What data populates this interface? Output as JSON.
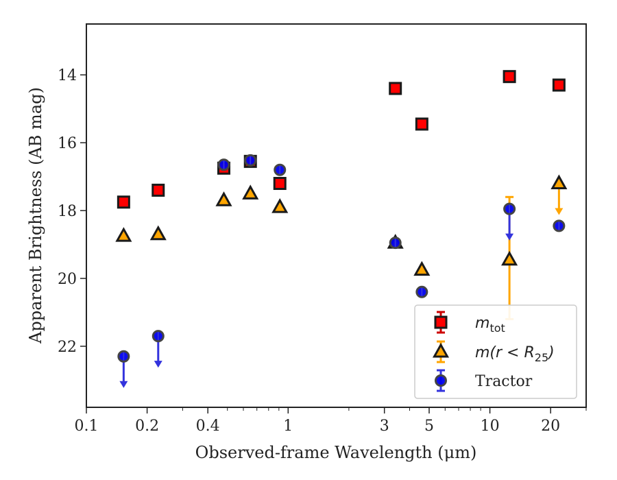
{
  "chart_data": {
    "type": "scatter",
    "xlabel": "Observed-frame Wavelength (μm)",
    "ylabel": "Apparent Brightness (AB mag)",
    "x_scale": "log",
    "y_inverted": true,
    "xlim": [
      0.1,
      30
    ],
    "ylim": [
      23.8,
      12.5
    ],
    "x_ticks": [
      0.1,
      0.2,
      0.4,
      1,
      3,
      5,
      10,
      20
    ],
    "x_tick_labels": [
      "0.1",
      "0.2",
      "0.4",
      "1",
      "3",
      "5",
      "10",
      "20"
    ],
    "y_ticks": [
      14,
      16,
      18,
      20,
      22
    ],
    "y_tick_labels": [
      "14",
      "16",
      "18",
      "20",
      "22"
    ],
    "grid": false,
    "legend": {
      "placement": "bottom-right",
      "entries": [
        {
          "series": "mtot",
          "main": "m",
          "sub": "tot"
        },
        {
          "series": "mr25",
          "main": "m(r < R",
          "sub": "25",
          "close": ")"
        },
        {
          "series": "tractor",
          "main": "Tractor"
        }
      ]
    },
    "series": [
      {
        "key": "mtot",
        "marker": "square",
        "color": "#ff0000",
        "edge": "#1a1a1a",
        "errcolor": "#cc0000",
        "points": [
          {
            "x": 0.153,
            "y": 17.75
          },
          {
            "x": 0.227,
            "y": 17.4
          },
          {
            "x": 0.48,
            "y": 16.75
          },
          {
            "x": 0.65,
            "y": 16.55
          },
          {
            "x": 0.91,
            "y": 17.2
          },
          {
            "x": 3.4,
            "y": 14.4
          },
          {
            "x": 4.6,
            "y": 15.45
          },
          {
            "x": 12.5,
            "y": 14.05
          },
          {
            "x": 22.0,
            "y": 14.3
          }
        ]
      },
      {
        "key": "mr25",
        "marker": "triangle",
        "color": "#ffa500",
        "edge": "#1a1a1a",
        "errcolor": "#ffa500",
        "points": [
          {
            "x": 0.153,
            "y": 18.75
          },
          {
            "x": 0.227,
            "y": 18.7
          },
          {
            "x": 0.48,
            "y": 17.7
          },
          {
            "x": 0.65,
            "y": 17.5
          },
          {
            "x": 0.91,
            "y": 17.9
          },
          {
            "x": 3.4,
            "y": 18.95
          },
          {
            "x": 4.6,
            "y": 19.75
          },
          {
            "x": 12.5,
            "y": 19.45,
            "err": [
              17.6,
              21.2
            ]
          },
          {
            "x": 22.0,
            "y": 17.2,
            "upper_limit": true
          }
        ]
      },
      {
        "key": "tractor",
        "marker": "circle",
        "color": "#0000ee",
        "edge": "#444444",
        "errcolor": "#3333dd",
        "points": [
          {
            "x": 0.153,
            "y": 22.3,
            "upper_limit": true
          },
          {
            "x": 0.227,
            "y": 21.7,
            "upper_limit": true
          },
          {
            "x": 0.48,
            "y": 16.65
          },
          {
            "x": 0.65,
            "y": 16.52
          },
          {
            "x": 0.91,
            "y": 16.8
          },
          {
            "x": 3.4,
            "y": 18.95
          },
          {
            "x": 4.6,
            "y": 20.4
          },
          {
            "x": 12.5,
            "y": 17.95,
            "upper_limit": true
          },
          {
            "x": 22.0,
            "y": 18.45
          }
        ]
      }
    ]
  }
}
